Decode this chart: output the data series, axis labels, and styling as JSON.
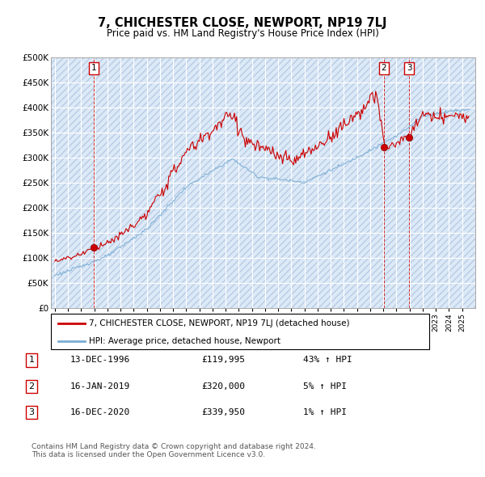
{
  "title1": "7, CHICHESTER CLOSE, NEWPORT, NP19 7LJ",
  "title2": "Price paid vs. HM Land Registry's House Price Index (HPI)",
  "ylim": [
    0,
    500000
  ],
  "yticks": [
    0,
    50000,
    100000,
    150000,
    200000,
    250000,
    300000,
    350000,
    400000,
    450000,
    500000
  ],
  "ytick_labels": [
    "£0",
    "£50K",
    "£100K",
    "£150K",
    "£200K",
    "£250K",
    "£300K",
    "£350K",
    "£400K",
    "£450K",
    "£500K"
  ],
  "sale_dates": [
    1996.96,
    2019.04,
    2020.96
  ],
  "sale_prices": [
    119995,
    320000,
    339950
  ],
  "sale_labels": [
    "1",
    "2",
    "3"
  ],
  "hpi_color": "#7aadd4",
  "price_color": "#cc0000",
  "vline_color": "#cc0000",
  "background_color": "#dce9f7",
  "grid_color": "#ffffff",
  "legend_label_price": "7, CHICHESTER CLOSE, NEWPORT, NP19 7LJ (detached house)",
  "legend_label_hpi": "HPI: Average price, detached house, Newport",
  "table_rows": [
    [
      "1",
      "13-DEC-1996",
      "£119,995",
      "43% ↑ HPI"
    ],
    [
      "2",
      "16-JAN-2019",
      "£320,000",
      "5% ↑ HPI"
    ],
    [
      "3",
      "16-DEC-2020",
      "£339,950",
      "1% ↑ HPI"
    ]
  ],
  "footnote": "Contains HM Land Registry data © Crown copyright and database right 2024.\nThis data is licensed under the Open Government Licence v3.0."
}
